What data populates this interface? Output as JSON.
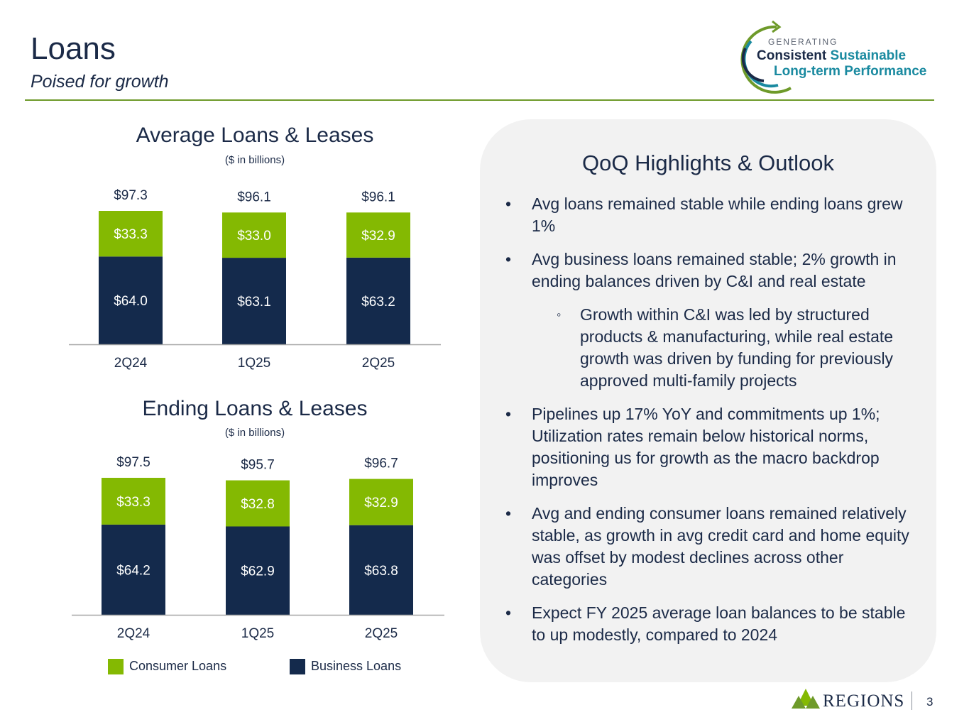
{
  "header": {
    "title": "Loans",
    "subtitle": "Poised for growth"
  },
  "logo": {
    "line1": "GENERATING",
    "consistent": "Consistent",
    "sustainable": "Sustainable",
    "line3": "Long-term Performance"
  },
  "colors": {
    "consumer": "#84b902",
    "business": "#142a4c",
    "accent": "#6e9a2a",
    "teal": "#1a8aa0"
  },
  "chart_data": [
    {
      "type": "bar",
      "stacked": true,
      "title": "Average Loans & Leases",
      "subtitle": "($ in billions)",
      "categories": [
        "2Q24",
        "1Q25",
        "2Q25"
      ],
      "series": [
        {
          "name": "Business Loans",
          "values": [
            64.0,
            63.1,
            63.2
          ],
          "labels": [
            "$64.0",
            "$63.1",
            "$63.2"
          ]
        },
        {
          "name": "Consumer Loans",
          "values": [
            33.3,
            33.0,
            32.9
          ],
          "labels": [
            "$33.3",
            "$33.0",
            "$32.9"
          ]
        }
      ],
      "totals": [
        97.3,
        96.1,
        96.1
      ],
      "total_labels": [
        "$97.3",
        "$96.1",
        "$96.1"
      ]
    },
    {
      "type": "bar",
      "stacked": true,
      "title": "Ending Loans & Leases",
      "subtitle": "($ in billions)",
      "categories": [
        "2Q24",
        "1Q25",
        "2Q25"
      ],
      "series": [
        {
          "name": "Business Loans",
          "values": [
            64.2,
            62.9,
            63.8
          ],
          "labels": [
            "$64.2",
            "$62.9",
            "$63.8"
          ]
        },
        {
          "name": "Consumer Loans",
          "values": [
            33.3,
            32.8,
            32.9
          ],
          "labels": [
            "$33.3",
            "$32.8",
            "$32.9"
          ]
        }
      ],
      "totals": [
        97.5,
        95.7,
        96.7
      ],
      "total_labels": [
        "$97.5",
        "$95.7",
        "$96.7"
      ]
    }
  ],
  "legend": {
    "consumer": "Consumer Loans",
    "business": "Business Loans",
    "placement": "bottom"
  },
  "highlights": {
    "title": "QoQ Highlights & Outlook",
    "bullets": [
      "Avg loans remained stable while ending loans grew 1%",
      "Avg business loans remained stable; 2% growth in ending balances driven by C&I and real estate",
      "Growth within C&I was led by structured products & manufacturing, while real estate growth was driven by funding for previously approved multi-family projects",
      "Pipelines up 17% YoY and commitments up 1%; Utilization rates remain below historical norms, positioning us for growth as the macro backdrop improves",
      "Avg and ending consumer loans remained relatively stable, as growth in avg credit card and home equity was offset by modest declines across other categories",
      "Expect FY 2025 average loan balances to be stable to up modestly, compared to 2024"
    ]
  },
  "footer": {
    "brand": "REGIONS",
    "page": "3"
  }
}
